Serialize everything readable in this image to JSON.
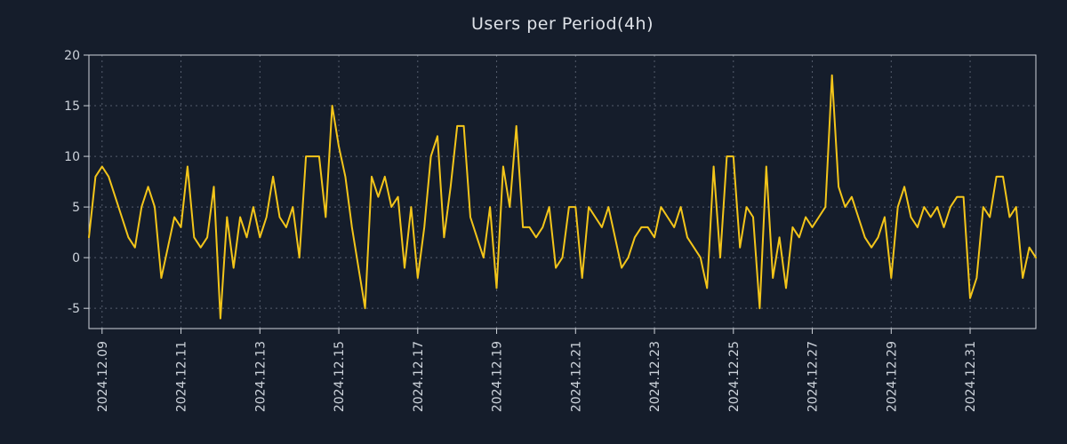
{
  "page": {
    "background": "#151d2b"
  },
  "chart": {
    "title": "Users per Period(4h)"
  },
  "chart_data": {
    "type": "line",
    "title": "Users per Period(4h)",
    "period": "4h",
    "legend": false,
    "grid": true,
    "line_color": "#f3c51a",
    "grid_color": "#8a93a3",
    "axis_color": "#cfd4db",
    "text_color": "#ccd2da",
    "ylim": [
      -7,
      20
    ],
    "y_ticks": [
      -5,
      0,
      5,
      10,
      15,
      20
    ],
    "x_tick_labels": [
      "2024.12.09",
      "2024.12.11",
      "2024.12.13",
      "2024.12.15",
      "2024.12.17",
      "2024.12.19",
      "2024.12.21",
      "2024.12.23",
      "2024.12.25",
      "2024.12.27",
      "2024.12.29",
      "2024.12.31"
    ],
    "x_tick_indices": [
      2,
      14,
      26,
      38,
      50,
      62,
      74,
      86,
      98,
      110,
      122,
      134
    ],
    "values": [
      2,
      8,
      9,
      8,
      6,
      4,
      2,
      1,
      5,
      7,
      5,
      -2,
      1,
      4,
      3,
      9,
      2,
      1,
      2,
      7,
      -6,
      4,
      -1,
      4,
      2,
      5,
      2,
      4,
      8,
      4,
      3,
      5,
      0,
      10,
      10,
      10,
      4,
      15,
      11,
      8,
      3,
      -1,
      -5,
      8,
      6,
      8,
      5,
      6,
      -1,
      5,
      -2,
      3,
      10,
      12,
      2,
      7,
      13,
      13,
      4,
      2,
      0,
      5,
      -3,
      9,
      5,
      13,
      3,
      3,
      2,
      3,
      5,
      -1,
      0,
      5,
      5,
      -2,
      5,
      4,
      3,
      5,
      2,
      -1,
      0,
      2,
      3,
      3,
      2,
      5,
      4,
      3,
      5,
      2,
      1,
      0,
      -3,
      9,
      0,
      10,
      10,
      1,
      5,
      4,
      -5,
      9,
      -2,
      2,
      -3,
      3,
      2,
      4,
      3,
      4,
      5,
      18,
      7,
      5,
      6,
      4,
      2,
      1,
      2,
      4,
      -2,
      5,
      7,
      4,
      3,
      5,
      4,
      5,
      3,
      5,
      6,
      6,
      -4,
      -2,
      5,
      4,
      8,
      8,
      4,
      5,
      -2,
      1,
      0
    ]
  }
}
